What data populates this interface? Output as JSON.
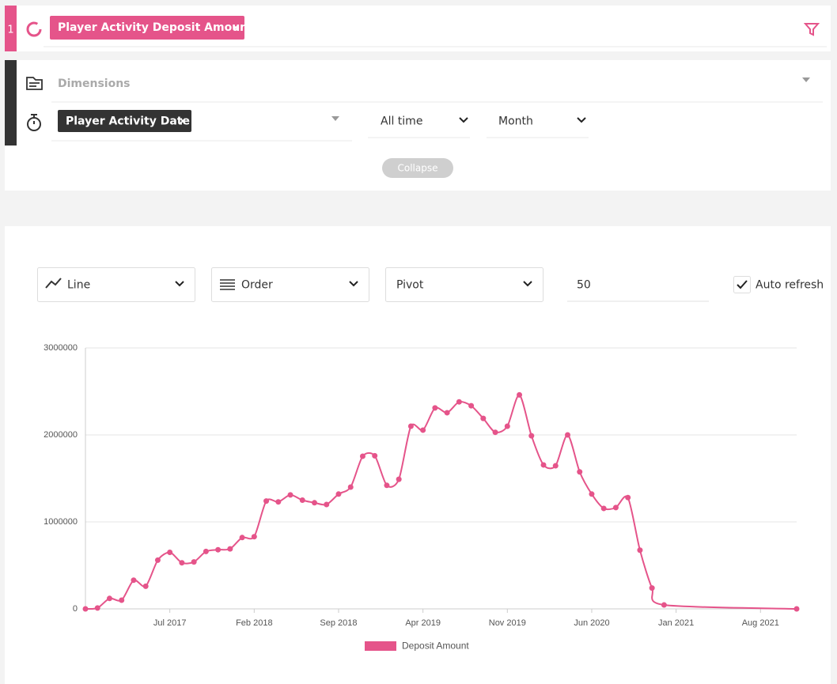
{
  "query": {
    "index": "1",
    "measure": "Player Activity Deposit Amount",
    "dimensions_placeholder": "Dimensions",
    "time_dimension": "Player Activity Date",
    "date_range": "All time",
    "granularity": "Month",
    "collapse_button": "Collapse"
  },
  "controls": {
    "chart_type": "Line",
    "order": "Order",
    "pivot": "Pivot",
    "limit": "50",
    "auto_refresh": "Auto refresh",
    "auto_refresh_checked": true
  },
  "chart_data": {
    "type": "line",
    "x": [
      "2016-12",
      "2017-01",
      "2017-02",
      "2017-03",
      "2017-04",
      "2017-05",
      "2017-06",
      "2017-07",
      "2017-08",
      "2017-09",
      "2017-10",
      "2017-11",
      "2017-12",
      "2018-01",
      "2018-02",
      "2018-03",
      "2018-04",
      "2018-05",
      "2018-06",
      "2018-07",
      "2018-08",
      "2018-09",
      "2018-10",
      "2018-11",
      "2018-12",
      "2019-01",
      "2019-02",
      "2019-03",
      "2019-04",
      "2019-05",
      "2019-06",
      "2019-07",
      "2019-08",
      "2019-09",
      "2019-10",
      "2019-11",
      "2019-12",
      "2020-01",
      "2020-02",
      "2020-03",
      "2020-04",
      "2020-05",
      "2020-06",
      "2020-07",
      "2020-08",
      "2020-09",
      "2020-10",
      "2020-11",
      "2020-12",
      "2021-11"
    ],
    "series": [
      {
        "name": "Deposit Amount",
        "color": "#e5548a",
        "values": [
          0,
          10000,
          120000,
          100000,
          330000,
          260000,
          560000,
          650000,
          530000,
          540000,
          660000,
          680000,
          690000,
          820000,
          830000,
          1240000,
          1230000,
          1310000,
          1250000,
          1220000,
          1200000,
          1320000,
          1400000,
          1755000,
          1760000,
          1420000,
          1490000,
          2100000,
          2055000,
          2310000,
          2255000,
          2380000,
          2335000,
          2190000,
          2030000,
          2100000,
          2460000,
          1990000,
          1655000,
          1645000,
          2000000,
          1575000,
          1320000,
          1155000,
          1165000,
          1280000,
          675000,
          240000,
          45000,
          0
        ]
      }
    ],
    "xlim": [
      "2016-12",
      "2021-11"
    ],
    "xticks": [
      {
        "value": "2017-07",
        "label": "Jul 2017"
      },
      {
        "value": "2018-02",
        "label": "Feb 2018"
      },
      {
        "value": "2018-09",
        "label": "Sep 2018"
      },
      {
        "value": "2019-04",
        "label": "Apr 2019"
      },
      {
        "value": "2019-11",
        "label": "Nov 2019"
      },
      {
        "value": "2020-06",
        "label": "Jun 2020"
      },
      {
        "value": "2021-01",
        "label": "Jan 2021"
      },
      {
        "value": "2021-08",
        "label": "Aug 2021"
      }
    ],
    "ylim": [
      0,
      3000000
    ],
    "yticks": [
      0,
      1000000,
      2000000,
      3000000
    ],
    "grid": true,
    "legend": "bottom"
  }
}
